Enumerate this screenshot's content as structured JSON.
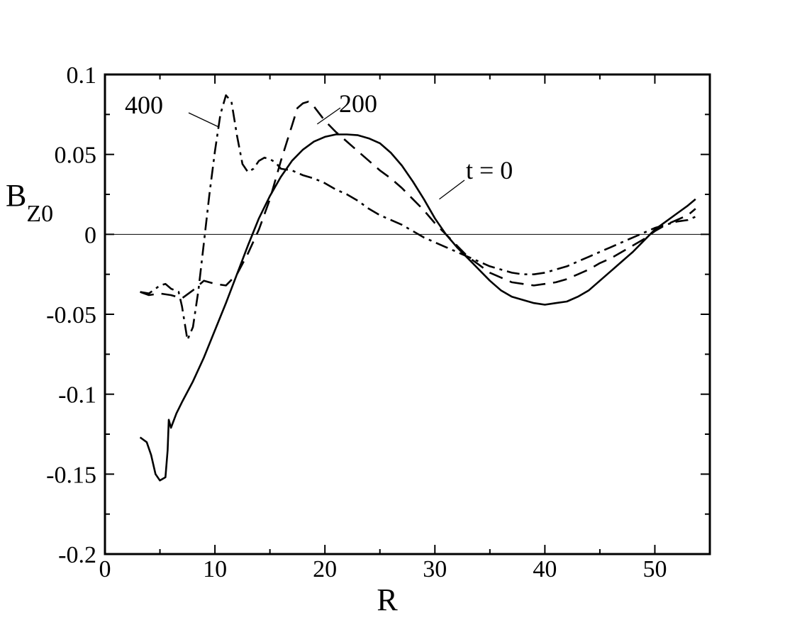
{
  "chart_data": {
    "type": "line",
    "xlabel": "R",
    "ylabel": "B",
    "ylabel_sub": "Z0",
    "xlim": [
      0,
      55
    ],
    "ylim": [
      -0.2,
      0.1
    ],
    "xticks": [
      0,
      10,
      20,
      30,
      40,
      50
    ],
    "xtick_labels": [
      "0",
      "10",
      "20",
      "30",
      "40",
      "50"
    ],
    "yticks": [
      -0.2,
      -0.15,
      -0.1,
      -0.05,
      0,
      0.05,
      0.1
    ],
    "ytick_labels": [
      "-0.2",
      "-0.15",
      "-0.1",
      "-0.05",
      "0",
      "0.05",
      "0.1"
    ],
    "zero_line": true,
    "grid": false,
    "series": [
      {
        "name": "t = 0",
        "style": "solid",
        "points": [
          [
            3.2,
            -0.127
          ],
          [
            3.8,
            -0.13
          ],
          [
            4.2,
            -0.138
          ],
          [
            4.6,
            -0.15
          ],
          [
            5.0,
            -0.154
          ],
          [
            5.5,
            -0.152
          ],
          [
            5.7,
            -0.135
          ],
          [
            5.8,
            -0.116
          ],
          [
            6.0,
            -0.121
          ],
          [
            6.5,
            -0.112
          ],
          [
            7.0,
            -0.105
          ],
          [
            8,
            -0.092
          ],
          [
            9,
            -0.077
          ],
          [
            10,
            -0.06
          ],
          [
            11,
            -0.043
          ],
          [
            12,
            -0.025
          ],
          [
            13,
            -0.007
          ],
          [
            14,
            0.01
          ],
          [
            15,
            0.024
          ],
          [
            16,
            0.036
          ],
          [
            17,
            0.046
          ],
          [
            18,
            0.053
          ],
          [
            19,
            0.058
          ],
          [
            20,
            0.061
          ],
          [
            21,
            0.0625
          ],
          [
            22,
            0.0625
          ],
          [
            23,
            0.062
          ],
          [
            24,
            0.06
          ],
          [
            25,
            0.057
          ],
          [
            26,
            0.051
          ],
          [
            27,
            0.043
          ],
          [
            28,
            0.033
          ],
          [
            29,
            0.022
          ],
          [
            30,
            0.01
          ],
          [
            31,
            0.0
          ],
          [
            32,
            -0.008
          ],
          [
            33,
            -0.015
          ],
          [
            34,
            -0.022
          ],
          [
            35,
            -0.029
          ],
          [
            36,
            -0.035
          ],
          [
            37,
            -0.039
          ],
          [
            38,
            -0.041
          ],
          [
            39,
            -0.043
          ],
          [
            40,
            -0.044
          ],
          [
            41,
            -0.043
          ],
          [
            42,
            -0.042
          ],
          [
            43,
            -0.039
          ],
          [
            44,
            -0.035
          ],
          [
            45,
            -0.029
          ],
          [
            46,
            -0.023
          ],
          [
            47,
            -0.017
          ],
          [
            48,
            -0.011
          ],
          [
            49,
            -0.004
          ],
          [
            50,
            0.003
          ],
          [
            51,
            0.008
          ],
          [
            52,
            0.013
          ],
          [
            53,
            0.018
          ],
          [
            53.7,
            0.022
          ]
        ]
      },
      {
        "name": "200",
        "style": "dashed",
        "points": [
          [
            3.2,
            -0.036
          ],
          [
            4,
            -0.038
          ],
          [
            5,
            -0.037
          ],
          [
            6,
            -0.038
          ],
          [
            7,
            -0.04
          ],
          [
            8,
            -0.035
          ],
          [
            9,
            -0.029
          ],
          [
            10,
            -0.031
          ],
          [
            11,
            -0.032
          ],
          [
            12,
            -0.025
          ],
          [
            13,
            -0.012
          ],
          [
            14,
            0.003
          ],
          [
            15,
            0.022
          ],
          [
            16,
            0.046
          ],
          [
            17,
            0.068
          ],
          [
            17.5,
            0.079
          ],
          [
            18,
            0.082
          ],
          [
            18.5,
            0.083
          ],
          [
            19,
            0.08
          ],
          [
            20,
            0.071
          ],
          [
            21,
            0.064
          ],
          [
            22,
            0.058
          ],
          [
            23,
            0.052
          ],
          [
            24,
            0.046
          ],
          [
            25,
            0.04
          ],
          [
            26,
            0.035
          ],
          [
            27,
            0.029
          ],
          [
            28,
            0.022
          ],
          [
            29,
            0.015
          ],
          [
            30,
            0.007
          ],
          [
            31,
            0.0
          ],
          [
            32,
            -0.007
          ],
          [
            33,
            -0.014
          ],
          [
            34,
            -0.019
          ],
          [
            35,
            -0.024
          ],
          [
            36,
            -0.027
          ],
          [
            37,
            -0.03
          ],
          [
            38,
            -0.031
          ],
          [
            39,
            -0.032
          ],
          [
            40,
            -0.031
          ],
          [
            41,
            -0.03
          ],
          [
            42,
            -0.028
          ],
          [
            43,
            -0.025
          ],
          [
            44,
            -0.022
          ],
          [
            45,
            -0.018
          ],
          [
            46,
            -0.015
          ],
          [
            47,
            -0.011
          ],
          [
            48,
            -0.007
          ],
          [
            49,
            -0.003
          ],
          [
            50,
            0.002
          ],
          [
            51,
            0.006
          ],
          [
            52,
            0.009
          ],
          [
            53,
            0.012
          ],
          [
            53.7,
            0.016
          ]
        ]
      },
      {
        "name": "400",
        "style": "dashdot",
        "points": [
          [
            3.2,
            -0.036
          ],
          [
            4,
            -0.037
          ],
          [
            5,
            -0.032
          ],
          [
            5.5,
            -0.031
          ],
          [
            6,
            -0.034
          ],
          [
            6.7,
            -0.036
          ],
          [
            7,
            -0.045
          ],
          [
            7.5,
            -0.066
          ],
          [
            8,
            -0.058
          ],
          [
            8.5,
            -0.035
          ],
          [
            9,
            -0.005
          ],
          [
            9.5,
            0.025
          ],
          [
            10,
            0.052
          ],
          [
            10.5,
            0.075
          ],
          [
            11,
            0.087
          ],
          [
            11.5,
            0.083
          ],
          [
            12,
            0.062
          ],
          [
            12.5,
            0.044
          ],
          [
            13,
            0.039
          ],
          [
            13.5,
            0.041
          ],
          [
            14,
            0.046
          ],
          [
            14.5,
            0.048
          ],
          [
            15,
            0.047
          ],
          [
            15.5,
            0.045
          ],
          [
            16,
            0.041
          ],
          [
            17,
            0.04
          ],
          [
            18,
            0.037
          ],
          [
            19,
            0.035
          ],
          [
            20,
            0.032
          ],
          [
            21,
            0.028
          ],
          [
            22,
            0.025
          ],
          [
            23,
            0.021
          ],
          [
            24,
            0.016
          ],
          [
            25,
            0.012
          ],
          [
            26,
            0.009
          ],
          [
            27,
            0.006
          ],
          [
            28,
            0.002
          ],
          [
            29,
            -0.002
          ],
          [
            30,
            -0.005
          ],
          [
            31,
            -0.008
          ],
          [
            32,
            -0.011
          ],
          [
            33,
            -0.014
          ],
          [
            34,
            -0.017
          ],
          [
            35,
            -0.02
          ],
          [
            36,
            -0.022
          ],
          [
            37,
            -0.024
          ],
          [
            38,
            -0.025
          ],
          [
            39,
            -0.025
          ],
          [
            40,
            -0.024
          ],
          [
            41,
            -0.022
          ],
          [
            42,
            -0.02
          ],
          [
            43,
            -0.017
          ],
          [
            44,
            -0.014
          ],
          [
            45,
            -0.011
          ],
          [
            46,
            -0.008
          ],
          [
            47,
            -0.005
          ],
          [
            48,
            -0.002
          ],
          [
            49,
            0.001
          ],
          [
            50,
            0.004
          ],
          [
            51,
            0.006
          ],
          [
            52,
            0.008
          ],
          [
            53,
            0.009
          ],
          [
            53.7,
            0.011
          ]
        ]
      }
    ],
    "annotations": [
      {
        "text": "400",
        "leader_to": [
          10.4,
          0.067
        ]
      },
      {
        "text": "200",
        "leader_to": [
          19.3,
          0.069
        ]
      },
      {
        "text": "t = 0",
        "leader_to": [
          30.4,
          0.022
        ]
      }
    ]
  }
}
